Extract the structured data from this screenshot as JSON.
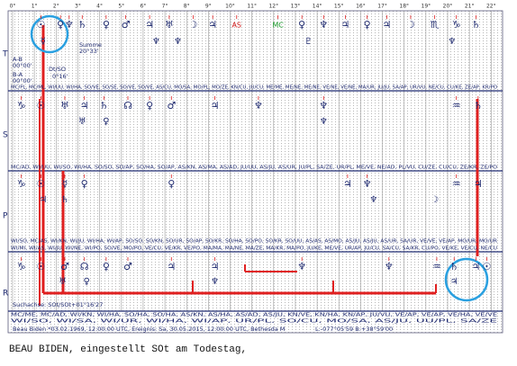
{
  "axis_degrees": [
    "0°",
    "1°",
    "2°",
    "3°",
    "4°",
    "5°",
    "6°",
    "7°",
    "8°",
    "9°",
    "10°",
    "11°",
    "12°",
    "13°",
    "14°",
    "15°",
    "16°",
    "17°",
    "18°",
    "19°",
    "20°",
    "21°",
    "22°"
  ],
  "rows": [
    {
      "label": "T",
      "glyphs": [
        {
          "text": "☉"
        },
        {
          "text": "♀"
        },
        {
          "text": "♆"
        },
        {
          "text": "♄"
        },
        {
          "text": "♀"
        },
        {
          "text": "♂"
        },
        {
          "text": "♃"
        },
        {
          "text": "♅"
        },
        {
          "text": "☽"
        },
        {
          "text": "♃"
        },
        {
          "text": "AS",
          "color": "#d42020"
        },
        {
          "text": "MC",
          "color": "#1a9a2a"
        },
        {
          "text": "♀"
        },
        {
          "text": "♆"
        },
        {
          "text": "♃"
        },
        {
          "text": "♀"
        },
        {
          "text": "♃"
        },
        {
          "text": "☽"
        },
        {
          "text": "♏"
        },
        {
          "text": "♑"
        },
        {
          "text": "♄"
        }
      ],
      "sub": [
        {
          "text": "☿"
        },
        {
          "text": "♆"
        },
        {
          "text": "♆"
        },
        {
          "text": "♇"
        },
        {
          "text": "♆"
        }
      ],
      "midpoints": [
        "MC/PL, MC/ML, WI/UU, WI/HA, SO/VE, SO/SE, SO/VE, SO/VE, AS/CU, MO/SA, MO/PL, MO/ZE, KN/CU, JU/CU, ME/ME, ME/NE, ME/NE, VE/NE, VE/NE, MA/UR, JU/JU, SA/AP, UR/VU, NE/CU, CU/KE, ZE/AP, KR/PO"
      ]
    },
    {
      "label": "S",
      "glyphs": [
        {
          "text": "♑"
        },
        {
          "text": "☉"
        },
        {
          "text": "♅"
        },
        {
          "text": "♃"
        },
        {
          "text": "♄"
        },
        {
          "text": "☊"
        },
        {
          "text": "♀"
        },
        {
          "text": "♂"
        },
        {
          "text": "♃"
        },
        {
          "text": "♆"
        },
        {
          "text": "♆"
        },
        {
          "text": "♒"
        },
        {
          "text": "♄"
        }
      ],
      "sub": [
        {
          "text": "♅"
        },
        {
          "text": "♀"
        },
        {
          "text": "♆"
        }
      ],
      "midpoints": [
        "MC/AD, WI/UU, WI/SO, WI/HA, SO/SO, SO/AP, SO/HA, SO/AP, AS/KN, AS/MA, AS/AD, JU/UU, AS/JU, AS/UR, JU/PL, SA/ZE, UR/PL, ME/VE, NE/AD, PL/VU, CU/ZE, CU/CU, ZE/KR, ZE/PO"
      ]
    },
    {
      "label": "P",
      "glyphs": [
        {
          "text": "♑"
        },
        {
          "text": "☉"
        },
        {
          "text": "☿"
        },
        {
          "text": "♀"
        },
        {
          "text": "♀"
        },
        {
          "text": "♃"
        },
        {
          "text": "♆"
        },
        {
          "text": "♒"
        },
        {
          "text": "♃"
        }
      ],
      "sub": [
        {
          "text": "♃"
        },
        {
          "text": "♄"
        },
        {
          "text": "♆"
        },
        {
          "text": "☽"
        }
      ],
      "midpoints": [
        "WI/SO, MC/AS, WI/KN, WI/JU, WI/HA, WI/AP, SO/SO, SO/KN, SO/UR, SO/AP, SO/KR, SO/HA, SO/PO, SO/KR, SO/UU, AS/AS, AS/MO, AS/JU, AS/JU, AS/UR, SA/UR, VE/VE, VE/AP, MO/UR, MO/UR",
        "WI/MI, WI/AS, WI/JU, WI/NE, WI/PO, SO/VE, MO/PO, VE/CU, VE/KR, VE/PO, MA/MA, MA/NE, MA/ZE, MA/KR, MA/PO, JU/KE, ME/VE, UR/AP, JU/CU, SA/CU, SA/KR, CU/PO, VE/KE, VE/CU, NE/CU"
      ]
    },
    {
      "label": "R",
      "glyphs": [
        {
          "text": "♑"
        },
        {
          "text": "☉"
        },
        {
          "text": "♂"
        },
        {
          "text": "☊"
        },
        {
          "text": "♀"
        },
        {
          "text": "♂"
        },
        {
          "text": "♃"
        },
        {
          "text": "♃"
        },
        {
          "text": "♆"
        },
        {
          "text": "♆"
        },
        {
          "text": "♒"
        },
        {
          "text": "♄"
        },
        {
          "text": "♃"
        },
        {
          "text": "☉"
        }
      ],
      "sub": [
        {
          "text": "♅"
        },
        {
          "text": "♀"
        },
        {
          "text": "♃"
        },
        {
          "text": "♆"
        }
      ],
      "midpoints": [
        "MC/ME, MC/AD, WI/KN, WI/HA, SO/HA, SO/HA, AS/KN, AS/HA, AS/AD, AS/JU, KN/VE, KN/HA, KN/AP, JU/VU, VE/AP, VE/AP, VE/HA, VE/VE",
        "WI/SO, WI/SA, WI/UR, WI/HA, WI/AP, UR/PL, SO/CU, MO/SA, AS/JU, UU/PL, SA/ZE"
      ]
    }
  ],
  "notes": {
    "summe": "Summe",
    "summe_value": "20°33'",
    "ab_label": "A-B",
    "ab_value": "00°00'",
    "ba_label": "B-A",
    "ba_value": "00°00'",
    "dt": "Dt/SO",
    "dt_value": "0°16'"
  },
  "search_axis": "Suchachse: SOt/SOt+01°16'27",
  "info": "Beau Biden  *03.02.1969, 12:00:00 UTC, Ereignis: Sa, 30.05.2015, 12:00:00 UTC, Bethesda M",
  "coords": "L:-077°05'59 B:+38°59'00",
  "caption": "BEAU BIDEN, eingestellt SOt am Todestag,"
}
